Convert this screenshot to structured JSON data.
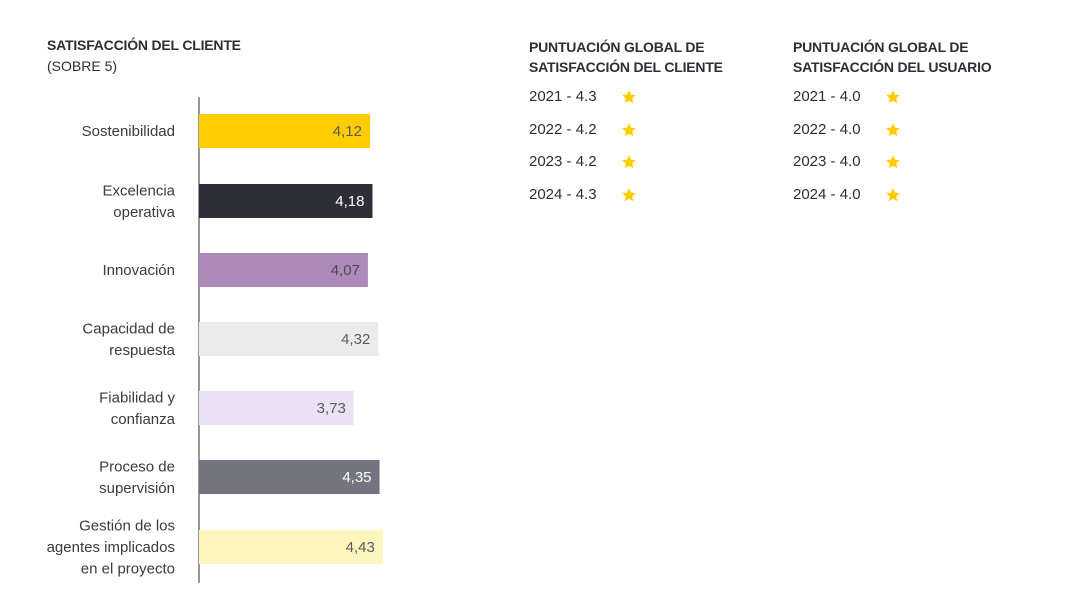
{
  "colors": {
    "yellow": "#ffcc00",
    "dark": "#2e2e38",
    "purple": "#ae8ab8",
    "light_gray": "#ebebeb",
    "lavender": "#ebe3f5",
    "gray": "#747480",
    "light_yellow": "#fff6bf",
    "star": "#ffcc00"
  },
  "chart_data": {
    "type": "bar",
    "orientation": "horizontal",
    "title": "SATISFACCIÓN DEL CLIENTE",
    "subtitle": "(SOBRE 5)",
    "categories": [
      [
        "Sostenibilidad"
      ],
      [
        "Excelencia",
        "operativa"
      ],
      [
        "Innovación"
      ],
      [
        "Capacidad de",
        "respuesta"
      ],
      [
        "Fiabilidad y",
        "confianza"
      ],
      [
        "Proceso de",
        "supervisión"
      ],
      [
        "Gestión de los",
        "agentes implicados",
        "en el proyecto"
      ]
    ],
    "values": [
      4.12,
      4.18,
      4.07,
      4.32,
      3.73,
      4.35,
      4.43
    ],
    "value_labels": [
      "4,12",
      "4,18",
      "4,07",
      "4,32",
      "3,73",
      "4,35",
      "4,43"
    ],
    "bar_colors": [
      "#ffcc00",
      "#2e2e38",
      "#ae8ab8",
      "#ebebeb",
      "#ebe3f5",
      "#747480",
      "#fff6bf"
    ],
    "label_colors": [
      "#5a5a62",
      "#ffffff",
      "#4a4a55",
      "#5a5a62",
      "#5a5a62",
      "#ffffff",
      "#5a5a62"
    ],
    "xlim": [
      0,
      5
    ],
    "grid": false,
    "legend": "none"
  },
  "panels": [
    {
      "title": "PUNTUACIÓN GLOBAL DE\nSATISFACCIÓN DEL CLIENTE",
      "rows": [
        "2021 - 4.3",
        "2022 - 4.2",
        "2023 - 4.2",
        "2024 - 4.3"
      ],
      "icon": "star-icon"
    },
    {
      "title": "PUNTUACIÓN GLOBAL DE\nSATISFACCIÓN DEL USUARIO",
      "rows": [
        "2021 - 4.0",
        "2022 - 4.0",
        "2023 - 4.0",
        "2024 - 4.0"
      ],
      "icon": "star-icon"
    }
  ]
}
